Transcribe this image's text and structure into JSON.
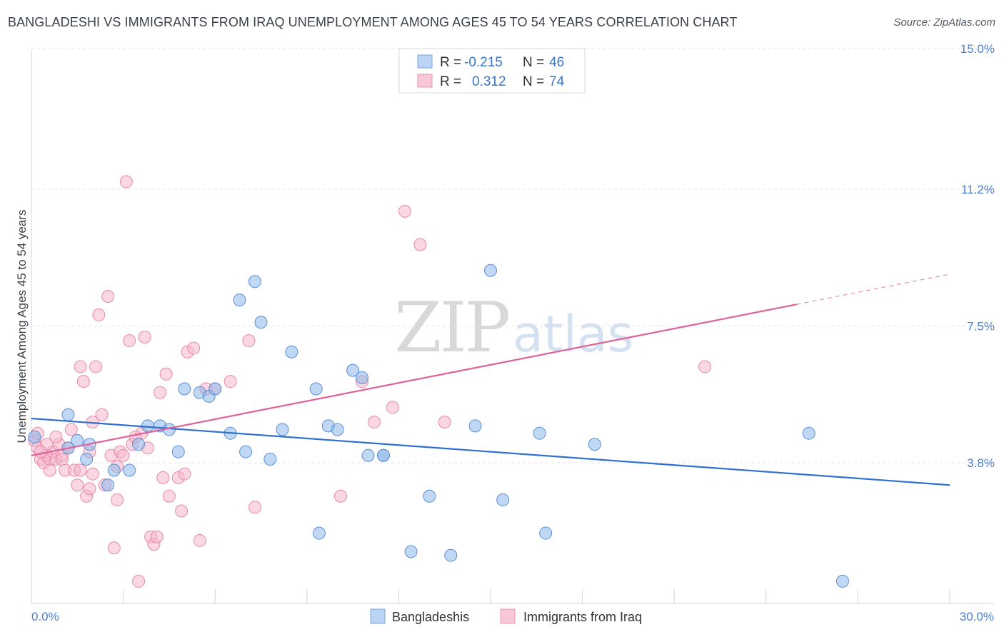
{
  "title": "BANGLADESHI VS IMMIGRANTS FROM IRAQ UNEMPLOYMENT AMONG AGES 45 TO 54 YEARS CORRELATION CHART",
  "source": "Source: ZipAtlas.com",
  "watermark": {
    "zip": "ZIP",
    "atlas": "atlas"
  },
  "legend_top": {
    "rows": [
      {
        "r_label": "R =",
        "r_value": "-0.215",
        "n_label": "N =",
        "n_value": "46"
      },
      {
        "r_label": "R =",
        "r_value": "0.312",
        "n_label": "N =",
        "n_value": "74"
      }
    ]
  },
  "chart_data": {
    "type": "scatter",
    "title": "BANGLADESHI VS IMMIGRANTS FROM IRAQ UNEMPLOYMENT AMONG AGES 45 TO 54 YEARS CORRELATION CHART",
    "xlabel": "",
    "ylabel": "Unemployment Among Ages 45 to 54 years",
    "xlim": [
      0,
      30
    ],
    "ylim": [
      0,
      15.5
    ],
    "x_tick_labels": [
      "0.0%",
      "30.0%"
    ],
    "y_ticks": [
      3.8,
      7.5,
      11.2,
      15.0
    ],
    "y_tick_labels": [
      "3.8%",
      "7.5%",
      "11.2%",
      "15.0%"
    ],
    "grid": true,
    "legend_placement": "top-center",
    "series": [
      {
        "name": "Bangladeshis",
        "color": "#8db8ea",
        "edge": "#5b8fd6",
        "trend_color": "#2e6fd0",
        "trend": {
          "x0": 0,
          "y0": 5.0,
          "x1": 30,
          "y1": 3.2,
          "dash_from": null
        },
        "points": [
          [
            0.1,
            4.5
          ],
          [
            1.2,
            5.1
          ],
          [
            1.2,
            4.2
          ],
          [
            1.5,
            4.4
          ],
          [
            1.8,
            3.9
          ],
          [
            1.9,
            4.3
          ],
          [
            2.5,
            3.2
          ],
          [
            2.7,
            3.6
          ],
          [
            3.2,
            3.6
          ],
          [
            3.5,
            4.3
          ],
          [
            3.8,
            4.8
          ],
          [
            4.2,
            4.8
          ],
          [
            4.5,
            4.7
          ],
          [
            4.8,
            4.1
          ],
          [
            5.0,
            5.8
          ],
          [
            5.5,
            5.7
          ],
          [
            5.8,
            5.6
          ],
          [
            6.0,
            5.8
          ],
          [
            6.5,
            4.6
          ],
          [
            6.8,
            8.2
          ],
          [
            7.0,
            4.1
          ],
          [
            7.3,
            8.7
          ],
          [
            7.5,
            7.6
          ],
          [
            7.8,
            3.9
          ],
          [
            8.2,
            4.7
          ],
          [
            8.5,
            6.8
          ],
          [
            9.3,
            5.8
          ],
          [
            9.4,
            1.9
          ],
          [
            9.7,
            4.8
          ],
          [
            10.0,
            4.7
          ],
          [
            10.5,
            6.3
          ],
          [
            10.8,
            6.1
          ],
          [
            11.0,
            4.0
          ],
          [
            11.5,
            4.0
          ],
          [
            11.5,
            4.0
          ],
          [
            12.4,
            1.4
          ],
          [
            13.0,
            2.9
          ],
          [
            13.7,
            1.3
          ],
          [
            14.5,
            4.8
          ],
          [
            15.0,
            9.0
          ],
          [
            15.4,
            2.8
          ],
          [
            16.6,
            4.6
          ],
          [
            16.8,
            1.9
          ],
          [
            18.4,
            4.3
          ],
          [
            25.4,
            4.6
          ],
          [
            26.5,
            0.6
          ]
        ]
      },
      {
        "name": "Immigrants from Iraq",
        "color": "#f6b7cb",
        "edge": "#e58aaa",
        "trend_color": "#e0609a",
        "trend": {
          "x0": 0,
          "y0": 4.0,
          "x1": 30,
          "y1": 8.9,
          "dash_from": 25
        },
        "points": [
          [
            0.1,
            4.4
          ],
          [
            0.2,
            4.2
          ],
          [
            0.3,
            3.9
          ],
          [
            0.4,
            3.8
          ],
          [
            0.5,
            4.0
          ],
          [
            0.6,
            3.9
          ],
          [
            0.7,
            4.1
          ],
          [
            0.8,
            3.9
          ],
          [
            0.9,
            4.3
          ],
          [
            1.0,
            4.0
          ],
          [
            1.1,
            3.6
          ],
          [
            1.2,
            4.2
          ],
          [
            1.4,
            3.6
          ],
          [
            1.5,
            3.2
          ],
          [
            1.6,
            3.6
          ],
          [
            1.6,
            6.4
          ],
          [
            1.7,
            6.0
          ],
          [
            1.8,
            2.9
          ],
          [
            1.9,
            3.1
          ],
          [
            2.0,
            3.5
          ],
          [
            2.1,
            6.4
          ],
          [
            2.2,
            7.8
          ],
          [
            2.3,
            5.1
          ],
          [
            2.4,
            3.2
          ],
          [
            2.5,
            8.3
          ],
          [
            2.6,
            4.0
          ],
          [
            2.7,
            1.5
          ],
          [
            2.8,
            2.8
          ],
          [
            2.9,
            4.1
          ],
          [
            3.0,
            4.0
          ],
          [
            3.1,
            11.4
          ],
          [
            3.2,
            7.1
          ],
          [
            3.3,
            4.3
          ],
          [
            3.5,
            0.6
          ],
          [
            3.6,
            4.6
          ],
          [
            3.7,
            7.2
          ],
          [
            3.8,
            4.2
          ],
          [
            3.9,
            1.8
          ],
          [
            4.0,
            1.6
          ],
          [
            4.1,
            1.8
          ],
          [
            4.2,
            5.7
          ],
          [
            4.3,
            3.4
          ],
          [
            4.4,
            6.2
          ],
          [
            4.5,
            2.9
          ],
          [
            4.8,
            3.4
          ],
          [
            4.9,
            2.5
          ],
          [
            5.0,
            3.5
          ],
          [
            5.1,
            6.8
          ],
          [
            5.3,
            6.9
          ],
          [
            5.5,
            1.7
          ],
          [
            5.7,
            5.8
          ],
          [
            6.0,
            5.8
          ],
          [
            6.5,
            6.0
          ],
          [
            7.1,
            7.1
          ],
          [
            7.3,
            2.6
          ],
          [
            10.1,
            2.9
          ],
          [
            10.8,
            6.0
          ],
          [
            11.2,
            4.9
          ],
          [
            11.8,
            5.3
          ],
          [
            12.2,
            10.6
          ],
          [
            12.7,
            9.7
          ],
          [
            13.5,
            4.9
          ],
          [
            22.0,
            6.4
          ],
          [
            0.2,
            4.6
          ],
          [
            0.5,
            4.3
          ],
          [
            0.8,
            4.5
          ],
          [
            1.3,
            4.7
          ],
          [
            2.0,
            4.9
          ],
          [
            3.4,
            4.5
          ],
          [
            0.6,
            3.6
          ],
          [
            1.0,
            3.9
          ],
          [
            2.8,
            3.7
          ],
          [
            1.9,
            4.1
          ],
          [
            0.3,
            4.1
          ]
        ]
      }
    ]
  },
  "legend_bottom": [
    {
      "label": "Bangladeshis"
    },
    {
      "label": "Immigrants from Iraq"
    }
  ]
}
